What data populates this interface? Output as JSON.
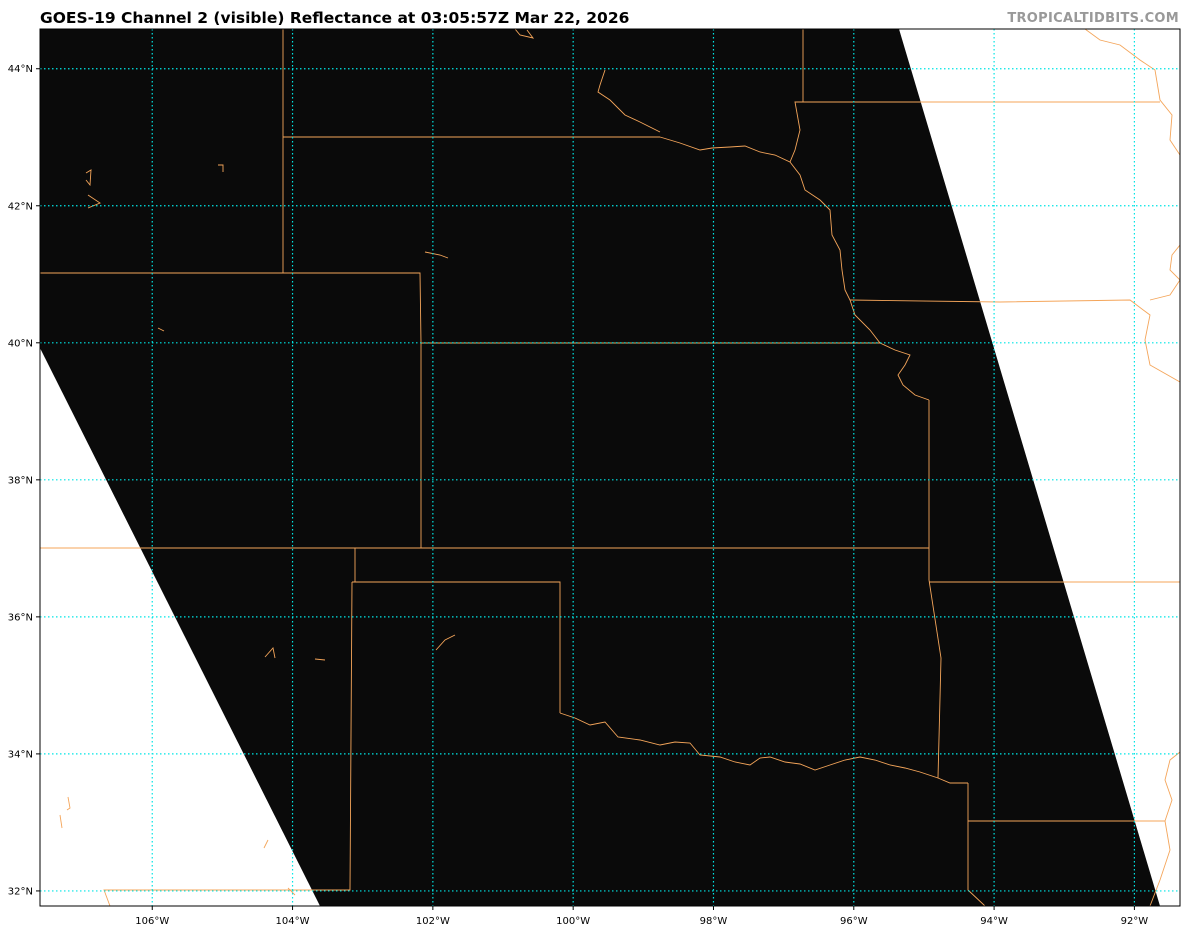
{
  "header": {
    "title": "GOES-19 Channel 2 (visible) Reflectance at 03:05:57Z Mar 22, 2026",
    "watermark": "TROPICALTIDBITS.COM"
  },
  "map": {
    "product": "GOES-19 Channel 2 visible reflectance",
    "lon_range": [
      -107.6,
      -91.35
    ],
    "lat_range": [
      31.78,
      44.58
    ],
    "lon_ticks": [
      -106,
      -104,
      -102,
      -100,
      -98,
      -96,
      -94,
      -92
    ],
    "lon_tick_labels": [
      "106°W",
      "104°W",
      "102°W",
      "100°W",
      "98°W",
      "96°W",
      "94°W",
      "92°W"
    ],
    "lat_ticks": [
      32,
      34,
      36,
      38,
      40,
      42,
      44
    ],
    "lat_tick_labels": [
      "32°N",
      "34°N",
      "36°N",
      "38°N",
      "40°N",
      "42°N",
      "44°N"
    ],
    "colors": {
      "imagery": "#0a0a0a",
      "no_data": "#ffffff",
      "gridlines": "#00e5e5",
      "borders": "#f4a55a",
      "watermark": "#999999"
    },
    "gridlines": "dotted"
  }
}
